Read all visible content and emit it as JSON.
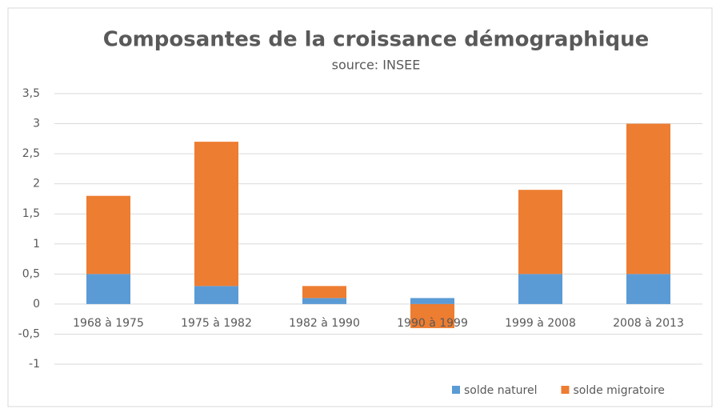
{
  "chart_data": {
    "type": "bar",
    "stacked": true,
    "title": "Composantes de la croissance démographique",
    "subtitle": "source: INSEE",
    "categories": [
      "1968 à 1975",
      "1975 à 1982",
      "1982 à 1990",
      "1990 à 1999",
      "1999 à 2008",
      "2008 à 2013"
    ],
    "series": [
      {
        "name": "solde naturel",
        "color": "#5b9bd5",
        "values": [
          0.5,
          0.3,
          0.1,
          0.1,
          0.5,
          0.5
        ]
      },
      {
        "name": "solde migratoire",
        "color": "#ed7d31",
        "values": [
          1.3,
          2.4,
          0.2,
          -0.4,
          1.4,
          2.5
        ]
      }
    ],
    "ylim": [
      -1,
      3.5
    ],
    "yticks": [
      -1,
      {
        "value": -0.5,
        "label": "-0,5"
      },
      0,
      {
        "value": 0.5,
        "label": "0,5"
      },
      1,
      {
        "value": 1.5,
        "label": "1,5"
      },
      2,
      {
        "value": 2.5,
        "label": "2,5"
      },
      3,
      {
        "value": 3.5,
        "label": "3,5"
      }
    ],
    "grid": true,
    "legend": "lower right"
  }
}
